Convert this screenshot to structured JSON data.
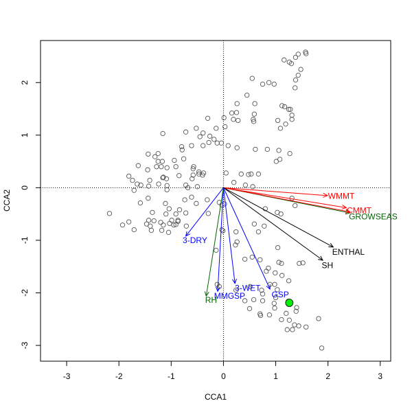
{
  "chart_data": {
    "type": "scatter",
    "title": "",
    "xlabel": "CCA1",
    "ylabel": "CCA2",
    "xlim": [
      -3.5,
      3.2
    ],
    "ylim": [
      -3.3,
      2.8
    ],
    "xticks": [
      "-3",
      "-2",
      "-1",
      "0",
      "1",
      "2",
      "3"
    ],
    "xtick_values": [
      -3,
      -2,
      -1,
      0,
      1,
      2,
      3
    ],
    "yticks": [
      "-3",
      "-2",
      "-1",
      "0",
      "1",
      "2"
    ],
    "ytick_values": [
      -3,
      -2,
      -1,
      0,
      1,
      2
    ],
    "grid": false,
    "reference_lines": {
      "x": 0,
      "y": 0,
      "style": "dotted"
    },
    "colors": {
      "point_stroke": "#555555",
      "highlight": "#00ee00",
      "red": "#ff0000",
      "blue": "#0000ff",
      "green": "#006400",
      "black": "#000000"
    },
    "points": [
      [
        1.57,
        2.58
      ],
      [
        1.58,
        2.55
      ],
      [
        1.43,
        2.54
      ],
      [
        1.38,
        2.48
      ],
      [
        1.16,
        2.43
      ],
      [
        1.26,
        2.39
      ],
      [
        1.3,
        2.36
      ],
      [
        1.48,
        2.25
      ],
      [
        1.43,
        2.14
      ],
      [
        1.38,
        2.05
      ],
      [
        0.55,
        2.08
      ],
      [
        0.87,
        2.0
      ],
      [
        0.97,
        1.97
      ],
      [
        0.75,
        1.97
      ],
      [
        1.37,
        1.9
      ],
      [
        0.45,
        1.76
      ],
      [
        0.26,
        1.6
      ],
      [
        0.6,
        1.6
      ],
      [
        1.12,
        1.56
      ],
      [
        1.17,
        1.54
      ],
      [
        1.25,
        1.49
      ],
      [
        1.28,
        1.49
      ],
      [
        0.16,
        1.42
      ],
      [
        0.25,
        1.43
      ],
      [
        0.59,
        1.4
      ],
      [
        1.31,
        1.38
      ],
      [
        0.01,
        1.33
      ],
      [
        -0.3,
        1.32
      ],
      [
        0.19,
        1.3
      ],
      [
        0.57,
        1.3
      ],
      [
        0.58,
        1.26
      ],
      [
        1.31,
        1.3
      ],
      [
        1.04,
        1.28
      ],
      [
        1.09,
        1.13
      ],
      [
        1.19,
        1.21
      ],
      [
        -0.52,
        1.13
      ],
      [
        0.03,
        1.16
      ],
      [
        -0.14,
        1.13
      ],
      [
        0.28,
        1.28
      ],
      [
        -0.72,
        1.06
      ],
      [
        -1.16,
        1.03
      ],
      [
        -0.39,
        1.04
      ],
      [
        -0.26,
        0.98
      ],
      [
        -0.45,
        0.97
      ],
      [
        -0.18,
        0.92
      ],
      [
        -0.28,
        0.86
      ],
      [
        -0.04,
        0.85
      ],
      [
        0.26,
        0.76
      ],
      [
        -0.61,
        0.8
      ],
      [
        -0.12,
        0.85
      ],
      [
        0.09,
        0.8
      ],
      [
        -0.39,
        0.8
      ],
      [
        -0.8,
        0.78
      ],
      [
        0.61,
        0.73
      ],
      [
        0.84,
        0.73
      ],
      [
        1.06,
        0.71
      ],
      [
        1.27,
        0.65
      ],
      [
        -0.79,
        0.72
      ],
      [
        1.08,
        0.54
      ],
      [
        1.01,
        0.5
      ],
      [
        -1.44,
        0.64
      ],
      [
        -1.25,
        0.65
      ],
      [
        -1.31,
        0.59
      ],
      [
        -1.25,
        0.5
      ],
      [
        -1.17,
        0.5
      ],
      [
        -0.76,
        0.55
      ],
      [
        -0.94,
        0.52
      ],
      [
        -1.63,
        0.42
      ],
      [
        -1.28,
        0.4
      ],
      [
        -1.19,
        0.4
      ],
      [
        -1.08,
        0.38
      ],
      [
        -0.91,
        0.4
      ],
      [
        -0.57,
        0.4
      ],
      [
        -1.45,
        0.34
      ],
      [
        -0.58,
        0.36
      ],
      [
        -0.47,
        0.3
      ],
      [
        -0.47,
        0.26
      ],
      [
        -0.38,
        0.28
      ],
      [
        -0.85,
        0.23
      ],
      [
        -0.4,
        0.24
      ],
      [
        -0.58,
        0.24
      ],
      [
        -1.81,
        0.22
      ],
      [
        -1.16,
        0.19
      ],
      [
        -1.15,
        0.2
      ],
      [
        -1.09,
        0.17
      ],
      [
        -0.6,
        0.17
      ],
      [
        0.48,
        0.25
      ],
      [
        0.34,
        0.26
      ],
      [
        0.53,
        0.26
      ],
      [
        0.67,
        0.26
      ],
      [
        0.05,
        0.28
      ],
      [
        -1.74,
        0.14
      ],
      [
        -1.41,
        0.14
      ],
      [
        -1.65,
        0.07
      ],
      [
        -1.58,
        0.05
      ],
      [
        -1.43,
        0.03
      ],
      [
        -1.08,
        0.04
      ],
      [
        -1.24,
        0.07
      ],
      [
        -0.72,
        0.05
      ],
      [
        -0.68,
        0.0
      ],
      [
        -0.5,
        0.02
      ],
      [
        0.2,
        0.1
      ],
      [
        0.42,
        0.05
      ],
      [
        -1.71,
        -0.05
      ],
      [
        -1.08,
        -0.04
      ],
      [
        0.56,
        0.02
      ],
      [
        -1.44,
        -0.2
      ],
      [
        -1.59,
        -0.29
      ],
      [
        -1.11,
        -0.3
      ],
      [
        -0.61,
        -0.18
      ],
      [
        -0.31,
        -0.23
      ],
      [
        -0.52,
        -0.3
      ],
      [
        -0.74,
        -0.23
      ],
      [
        -0.08,
        -0.28
      ],
      [
        -0.03,
        -0.33
      ],
      [
        0.02,
        -0.31
      ],
      [
        -2.18,
        -0.49
      ],
      [
        -1.36,
        -0.47
      ],
      [
        -1.1,
        -0.5
      ],
      [
        -0.91,
        -0.5
      ],
      [
        -0.84,
        -0.42
      ],
      [
        -1.04,
        -0.4
      ],
      [
        -0.72,
        -0.48
      ],
      [
        -0.29,
        -0.49
      ],
      [
        -1.81,
        -0.65
      ],
      [
        -1.93,
        -0.71
      ],
      [
        -1.33,
        -0.63
      ],
      [
        -1.43,
        -0.62
      ],
      [
        -1.2,
        -0.66
      ],
      [
        -1.03,
        -0.68
      ],
      [
        -0.99,
        -0.62
      ],
      [
        -0.87,
        -0.62
      ],
      [
        -1.47,
        -0.69
      ],
      [
        -1.71,
        -0.8
      ],
      [
        -1.4,
        -0.73
      ],
      [
        -1.15,
        -0.71
      ],
      [
        -0.95,
        -0.71
      ],
      [
        -0.87,
        -0.64
      ],
      [
        -0.71,
        -0.73
      ],
      [
        -1.38,
        -0.81
      ],
      [
        -1.18,
        -0.81
      ],
      [
        -1.05,
        -0.85
      ],
      [
        -0.03,
        -0.8
      ],
      [
        -0.01,
        -0.82
      ],
      [
        -0.91,
        -0.7
      ],
      [
        0.59,
        -0.69
      ],
      [
        0.78,
        -0.73
      ],
      [
        1.03,
        -0.47
      ],
      [
        1.1,
        -0.5
      ],
      [
        1.31,
        -0.2
      ],
      [
        1.37,
        -0.34
      ],
      [
        0.8,
        -0.4
      ],
      [
        0.67,
        -0.84
      ],
      [
        0.24,
        -0.84
      ],
      [
        0.26,
        -1.03
      ],
      [
        0.23,
        -1.09
      ],
      [
        1.04,
        -1.14
      ],
      [
        1.06,
        -1.42
      ],
      [
        1.11,
        -1.44
      ],
      [
        1.52,
        -1.43
      ],
      [
        1.45,
        -1.44
      ],
      [
        0.86,
        -1.53
      ],
      [
        0.82,
        -1.59
      ],
      [
        0.7,
        -1.37
      ],
      [
        -0.14,
        -1.19
      ],
      [
        0.55,
        -1.32
      ],
      [
        0.41,
        -1.36
      ],
      [
        1.12,
        -1.67
      ],
      [
        1.25,
        -1.77
      ],
      [
        0.99,
        -1.62
      ],
      [
        -0.08,
        -1.88
      ],
      [
        -0.12,
        -1.84
      ],
      [
        0.51,
        -1.88
      ],
      [
        0.89,
        -1.84
      ],
      [
        0.98,
        -1.84
      ],
      [
        0.73,
        -1.95
      ],
      [
        0.24,
        -1.95
      ],
      [
        1.03,
        -1.94
      ],
      [
        0.58,
        -2.13
      ],
      [
        0.41,
        -2.15
      ],
      [
        0.75,
        -2.02
      ],
      [
        1.0,
        -2.09
      ],
      [
        1.24,
        -2.16
      ],
      [
        1.4,
        -2.28
      ],
      [
        0.97,
        -2.2
      ],
      [
        0.98,
        -2.29
      ],
      [
        0.88,
        -2.42
      ],
      [
        1.39,
        -2.35
      ],
      [
        1.2,
        -2.39
      ],
      [
        0.7,
        -2.4
      ],
      [
        0.71,
        -2.43
      ],
      [
        0.5,
        -2.3
      ],
      [
        1.26,
        -2.52
      ],
      [
        1.11,
        -2.51
      ],
      [
        1.44,
        -2.63
      ],
      [
        1.36,
        -2.61
      ],
      [
        1.32,
        -2.7
      ],
      [
        1.22,
        -2.7
      ],
      [
        1.58,
        -2.65
      ],
      [
        1.82,
        -2.49
      ],
      [
        1.88,
        -3.05
      ],
      [
        0.75,
        -2.15
      ]
    ],
    "highlight_point": [
      1.26,
      -2.19
    ],
    "arrows": [
      {
        "label": "WMMT",
        "x": 1.99,
        "y": -0.15,
        "color": "#ff0000",
        "lx": 2.0,
        "ly": -0.16
      },
      {
        "label": "CMMT",
        "x": 2.35,
        "y": -0.38,
        "color": "#ff0000",
        "lx": 2.36,
        "ly": -0.43
      },
      {
        "label": "GROWSEAS",
        "x": 2.42,
        "y": -0.48,
        "color": "#006400",
        "lx": 2.4,
        "ly": -0.55
      },
      {
        "label": "",
        "x": 2.42,
        "y": -0.46,
        "color": "#ff0000",
        "lx": 0,
        "ly": 0
      },
      {
        "label": "ENTHAL",
        "x": 2.1,
        "y": -1.13,
        "color": "#000000",
        "lx": 2.08,
        "ly": -1.22
      },
      {
        "label": "SH",
        "x": 1.9,
        "y": -1.38,
        "color": "#000000",
        "lx": 1.88,
        "ly": -1.48
      },
      {
        "label": "3-DRY",
        "x": -0.72,
        "y": -0.92,
        "color": "#0000ff",
        "lx": -0.78,
        "ly": -1.0
      },
      {
        "label": "MMGSP",
        "x": -0.11,
        "y": -1.97,
        "color": "#0000ff",
        "lx": -0.18,
        "ly": -2.06
      },
      {
        "label": "RH",
        "x": -0.33,
        "y": -2.06,
        "color": "#006400",
        "lx": -0.35,
        "ly": -2.14
      },
      {
        "label": "3-WET",
        "x": 0.22,
        "y": -1.82,
        "color": "#0000ff",
        "lx": 0.22,
        "ly": -1.91
      },
      {
        "label": "GSP",
        "x": 0.89,
        "y": -1.93,
        "color": "#0000ff",
        "lx": 0.92,
        "ly": -2.03
      }
    ]
  }
}
